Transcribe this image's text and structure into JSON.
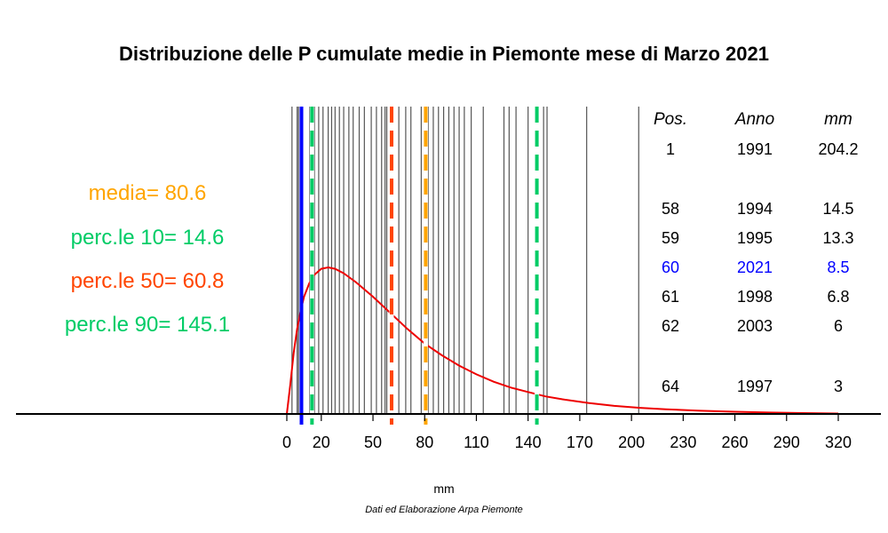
{
  "chart_data": {
    "type": "line",
    "title": "Distribuzione delle P cumulate medie in Piemonte mese di Marzo 2021",
    "xlabel": "mm",
    "source": "Dati ed Elaborazione Arpa Piemonte",
    "xlim": [
      0,
      320
    ],
    "xticks": [
      0,
      20,
      50,
      80,
      110,
      140,
      170,
      200,
      230,
      260,
      290,
      320
    ],
    "stats": [
      {
        "label": "media= 80.6",
        "value": 80.6,
        "color": "#ffa500"
      },
      {
        "label": "perc.le 10= 14.6",
        "value": 14.6,
        "color": "#00cc66"
      },
      {
        "label": "perc.le 50= 60.8",
        "value": 60.8,
        "color": "#ff4500"
      },
      {
        "label": "perc.le 90= 145.1",
        "value": 145.1,
        "color": "#00cc66"
      }
    ],
    "current_value": 8.5,
    "current_color": "#0000ff",
    "years_values": [
      3,
      6,
      6.8,
      13.3,
      14.5,
      16,
      18.5,
      21,
      24,
      26,
      28,
      30.5,
      33,
      36,
      38.5,
      42,
      45,
      49,
      52,
      55,
      57,
      58,
      61,
      65,
      69,
      72,
      78,
      82,
      85,
      88,
      91,
      94,
      97,
      100,
      103,
      107,
      114,
      126,
      129,
      133,
      140,
      145,
      149,
      151,
      174,
      204.2
    ],
    "curve": [
      [
        0,
        0
      ],
      [
        2,
        0.2
      ],
      [
        4,
        0.42
      ],
      [
        6,
        0.58
      ],
      [
        8,
        0.7
      ],
      [
        10,
        0.8
      ],
      [
        13,
        0.89
      ],
      [
        16,
        0.95
      ],
      [
        20,
        0.99
      ],
      [
        24,
        1.0
      ],
      [
        28,
        0.99
      ],
      [
        33,
        0.96
      ],
      [
        40,
        0.9
      ],
      [
        50,
        0.8
      ],
      [
        60,
        0.69
      ],
      [
        70,
        0.58
      ],
      [
        80,
        0.48
      ],
      [
        90,
        0.4
      ],
      [
        100,
        0.33
      ],
      [
        110,
        0.27
      ],
      [
        120,
        0.22
      ],
      [
        130,
        0.18
      ],
      [
        140,
        0.15
      ],
      [
        150,
        0.12
      ],
      [
        160,
        0.1
      ],
      [
        175,
        0.075
      ],
      [
        190,
        0.055
      ],
      [
        205,
        0.042
      ],
      [
        220,
        0.032
      ],
      [
        240,
        0.022
      ],
      [
        260,
        0.015
      ],
      [
        280,
        0.01
      ],
      [
        300,
        0.006
      ],
      [
        320,
        0.003
      ]
    ],
    "table": {
      "headers": [
        "Pos.",
        "Anno",
        "mm"
      ],
      "rows": [
        {
          "pos": "1",
          "anno": "1991",
          "mm": "204.2",
          "highlight": false
        },
        {
          "pos": "58",
          "anno": "1994",
          "mm": "14.5",
          "highlight": false
        },
        {
          "pos": "59",
          "anno": "1995",
          "mm": "13.3",
          "highlight": false
        },
        {
          "pos": "60",
          "anno": "2021",
          "mm": "8.5",
          "highlight": true
        },
        {
          "pos": "61",
          "anno": "1998",
          "mm": "6.8",
          "highlight": false
        },
        {
          "pos": "62",
          "anno": "2003",
          "mm": "6",
          "highlight": false
        },
        {
          "pos": "64",
          "anno": "1997",
          "mm": "3",
          "highlight": false
        }
      ]
    }
  }
}
